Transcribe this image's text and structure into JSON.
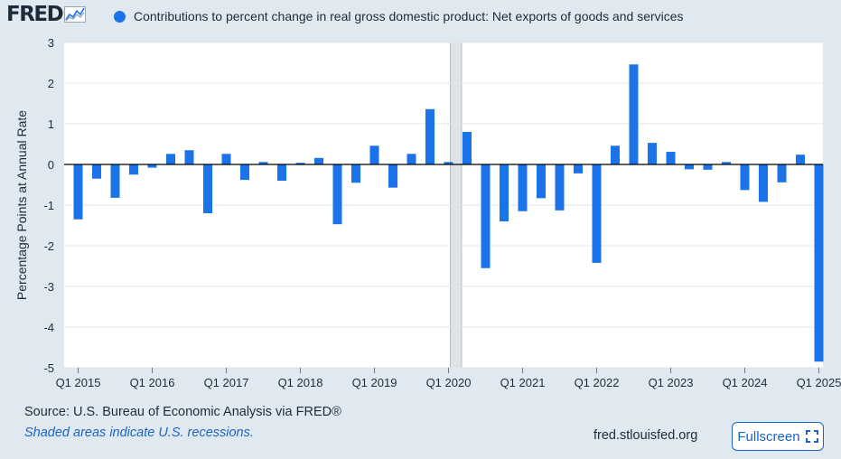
{
  "header": {
    "logo_text": "FRED",
    "legend_label": "Contributions to percent change in real gross domestic product: Net exports of goods and services"
  },
  "colors": {
    "accent": "#1a73e8",
    "background": "#e1e9f0",
    "plot_bg": "#ffffff",
    "recession": "#dfe2e6",
    "grid": "#e6e6e6"
  },
  "chart_data": {
    "type": "bar",
    "title": "Contributions to percent change in real gross domestic product: Net exports of goods and services",
    "ylabel": "Percentage Points at Annual Rate",
    "xlabel": "",
    "ylim": [
      -5,
      3
    ],
    "yticks": [
      3,
      2,
      1,
      0,
      -1,
      -2,
      -3,
      -4,
      -5
    ],
    "ytick_labels": [
      "3",
      "2",
      "1",
      "0",
      "-1",
      "-2",
      "-3",
      "-4",
      "-5"
    ],
    "xtick_labels": [
      "Q1 2015",
      "Q1 2016",
      "Q1 2017",
      "Q1 2018",
      "Q1 2019",
      "Q1 2020",
      "Q1 2021",
      "Q1 2022",
      "Q1 2023",
      "Q1 2024",
      "Q1 2025"
    ],
    "quarters": [
      "2015Q1",
      "2015Q2",
      "2015Q3",
      "2015Q4",
      "2016Q1",
      "2016Q2",
      "2016Q3",
      "2016Q4",
      "2017Q1",
      "2017Q2",
      "2017Q3",
      "2017Q4",
      "2018Q1",
      "2018Q2",
      "2018Q3",
      "2018Q4",
      "2019Q1",
      "2019Q2",
      "2019Q3",
      "2019Q4",
      "2020Q1",
      "2020Q2",
      "2020Q3",
      "2020Q4",
      "2021Q1",
      "2021Q2",
      "2021Q3",
      "2021Q4",
      "2022Q1",
      "2022Q2",
      "2022Q3",
      "2022Q4",
      "2023Q1",
      "2023Q2",
      "2023Q3",
      "2023Q4",
      "2024Q1",
      "2024Q2",
      "2024Q3",
      "2024Q4",
      "2025Q1"
    ],
    "values": [
      -1.35,
      -0.35,
      -0.82,
      -0.25,
      -0.08,
      0.26,
      0.35,
      -1.2,
      0.26,
      -0.38,
      0.06,
      -0.4,
      0.04,
      0.16,
      -1.47,
      -0.45,
      0.46,
      -0.57,
      0.26,
      1.36,
      0.06,
      0.8,
      -2.55,
      -1.4,
      -1.15,
      -0.83,
      -1.13,
      -0.22,
      -2.42,
      0.46,
      2.46,
      0.53,
      0.31,
      -0.12,
      -0.13,
      0.06,
      -0.63,
      -0.92,
      -0.44,
      0.24,
      -4.85
    ],
    "recession": {
      "start": "2020Q1",
      "end": "2020Q2"
    },
    "series_name": "Net exports of goods and services",
    "grid": true
  },
  "footer": {
    "source": "Source: U.S. Bureau of Economic Analysis via FRED®",
    "recession_note": "Shaded areas indicate U.S. recessions.",
    "url": "fred.stlouisfed.org",
    "fullscreen_label": "Fullscreen"
  }
}
